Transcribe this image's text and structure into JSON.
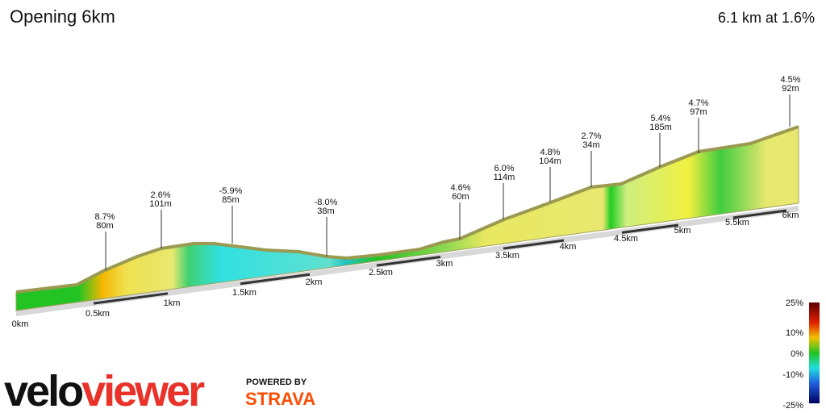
{
  "header": {
    "title": "Opening 6km",
    "summary": "6.1 km at 1.6%"
  },
  "distance_labels": [
    "0km",
    "0.5km",
    "1km",
    "1.5km",
    "2km",
    "2.5km",
    "3km",
    "3.5km",
    "4km",
    "4.5km",
    "5km",
    "5.5km",
    "6km"
  ],
  "annotations": [
    {
      "grade": "8.7%",
      "length": "80m"
    },
    {
      "grade": "2.6%",
      "length": "101m"
    },
    {
      "grade": "-5.9%",
      "length": "85m"
    },
    {
      "grade": "-8.0%",
      "length": "38m"
    },
    {
      "grade": "4.6%",
      "length": "60m"
    },
    {
      "grade": "6.0%",
      "length": "114m"
    },
    {
      "grade": "4.8%",
      "length": "104m"
    },
    {
      "grade": "2.7%",
      "length": "34m"
    },
    {
      "grade": "5.4%",
      "length": "185m"
    },
    {
      "grade": "4.7%",
      "length": "97m"
    },
    {
      "grade": "4.5%",
      "length": "92m"
    }
  ],
  "legend": [
    "25%",
    "10%",
    "0%",
    "-10%",
    "-25%"
  ],
  "branding": {
    "logo_left": "velo",
    "logo_right": "viewer",
    "powered": "POWERED BY",
    "partner": "STRAVA"
  }
}
